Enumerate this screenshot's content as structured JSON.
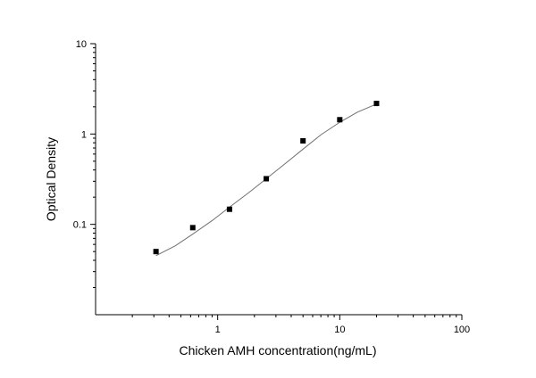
{
  "chart_data": {
    "type": "scatter",
    "title": "",
    "xlabel": "Chicken AMH concentration(ng/mL)",
    "ylabel": "Optical Density",
    "x_scale": "log",
    "y_scale": "log",
    "xlim": [
      0.1,
      100
    ],
    "ylim": [
      0.01,
      10
    ],
    "x_ticks": [
      1,
      10,
      100
    ],
    "x_tick_labels": [
      "1",
      "10",
      "100"
    ],
    "y_ticks": [
      0.1,
      1,
      10
    ],
    "y_tick_labels": [
      "0.1",
      "1",
      "10"
    ],
    "grid": false,
    "legend": "none",
    "series": [
      {
        "marker": "square",
        "color": "#000000",
        "x": [
          0.3125,
          0.625,
          1.25,
          2.5,
          5,
          10,
          20
        ],
        "y": [
          0.05,
          0.092,
          0.147,
          0.32,
          0.84,
          1.44,
          2.18
        ]
      }
    ],
    "fit_curve": {
      "color": "#707070",
      "x": [
        0.3125,
        0.45,
        0.625,
        0.9,
        1.25,
        1.8,
        2.5,
        3.5,
        5,
        7,
        10,
        14,
        20
      ],
      "y": [
        0.045,
        0.058,
        0.078,
        0.11,
        0.155,
        0.225,
        0.32,
        0.46,
        0.68,
        0.98,
        1.35,
        1.75,
        2.15
      ]
    }
  }
}
